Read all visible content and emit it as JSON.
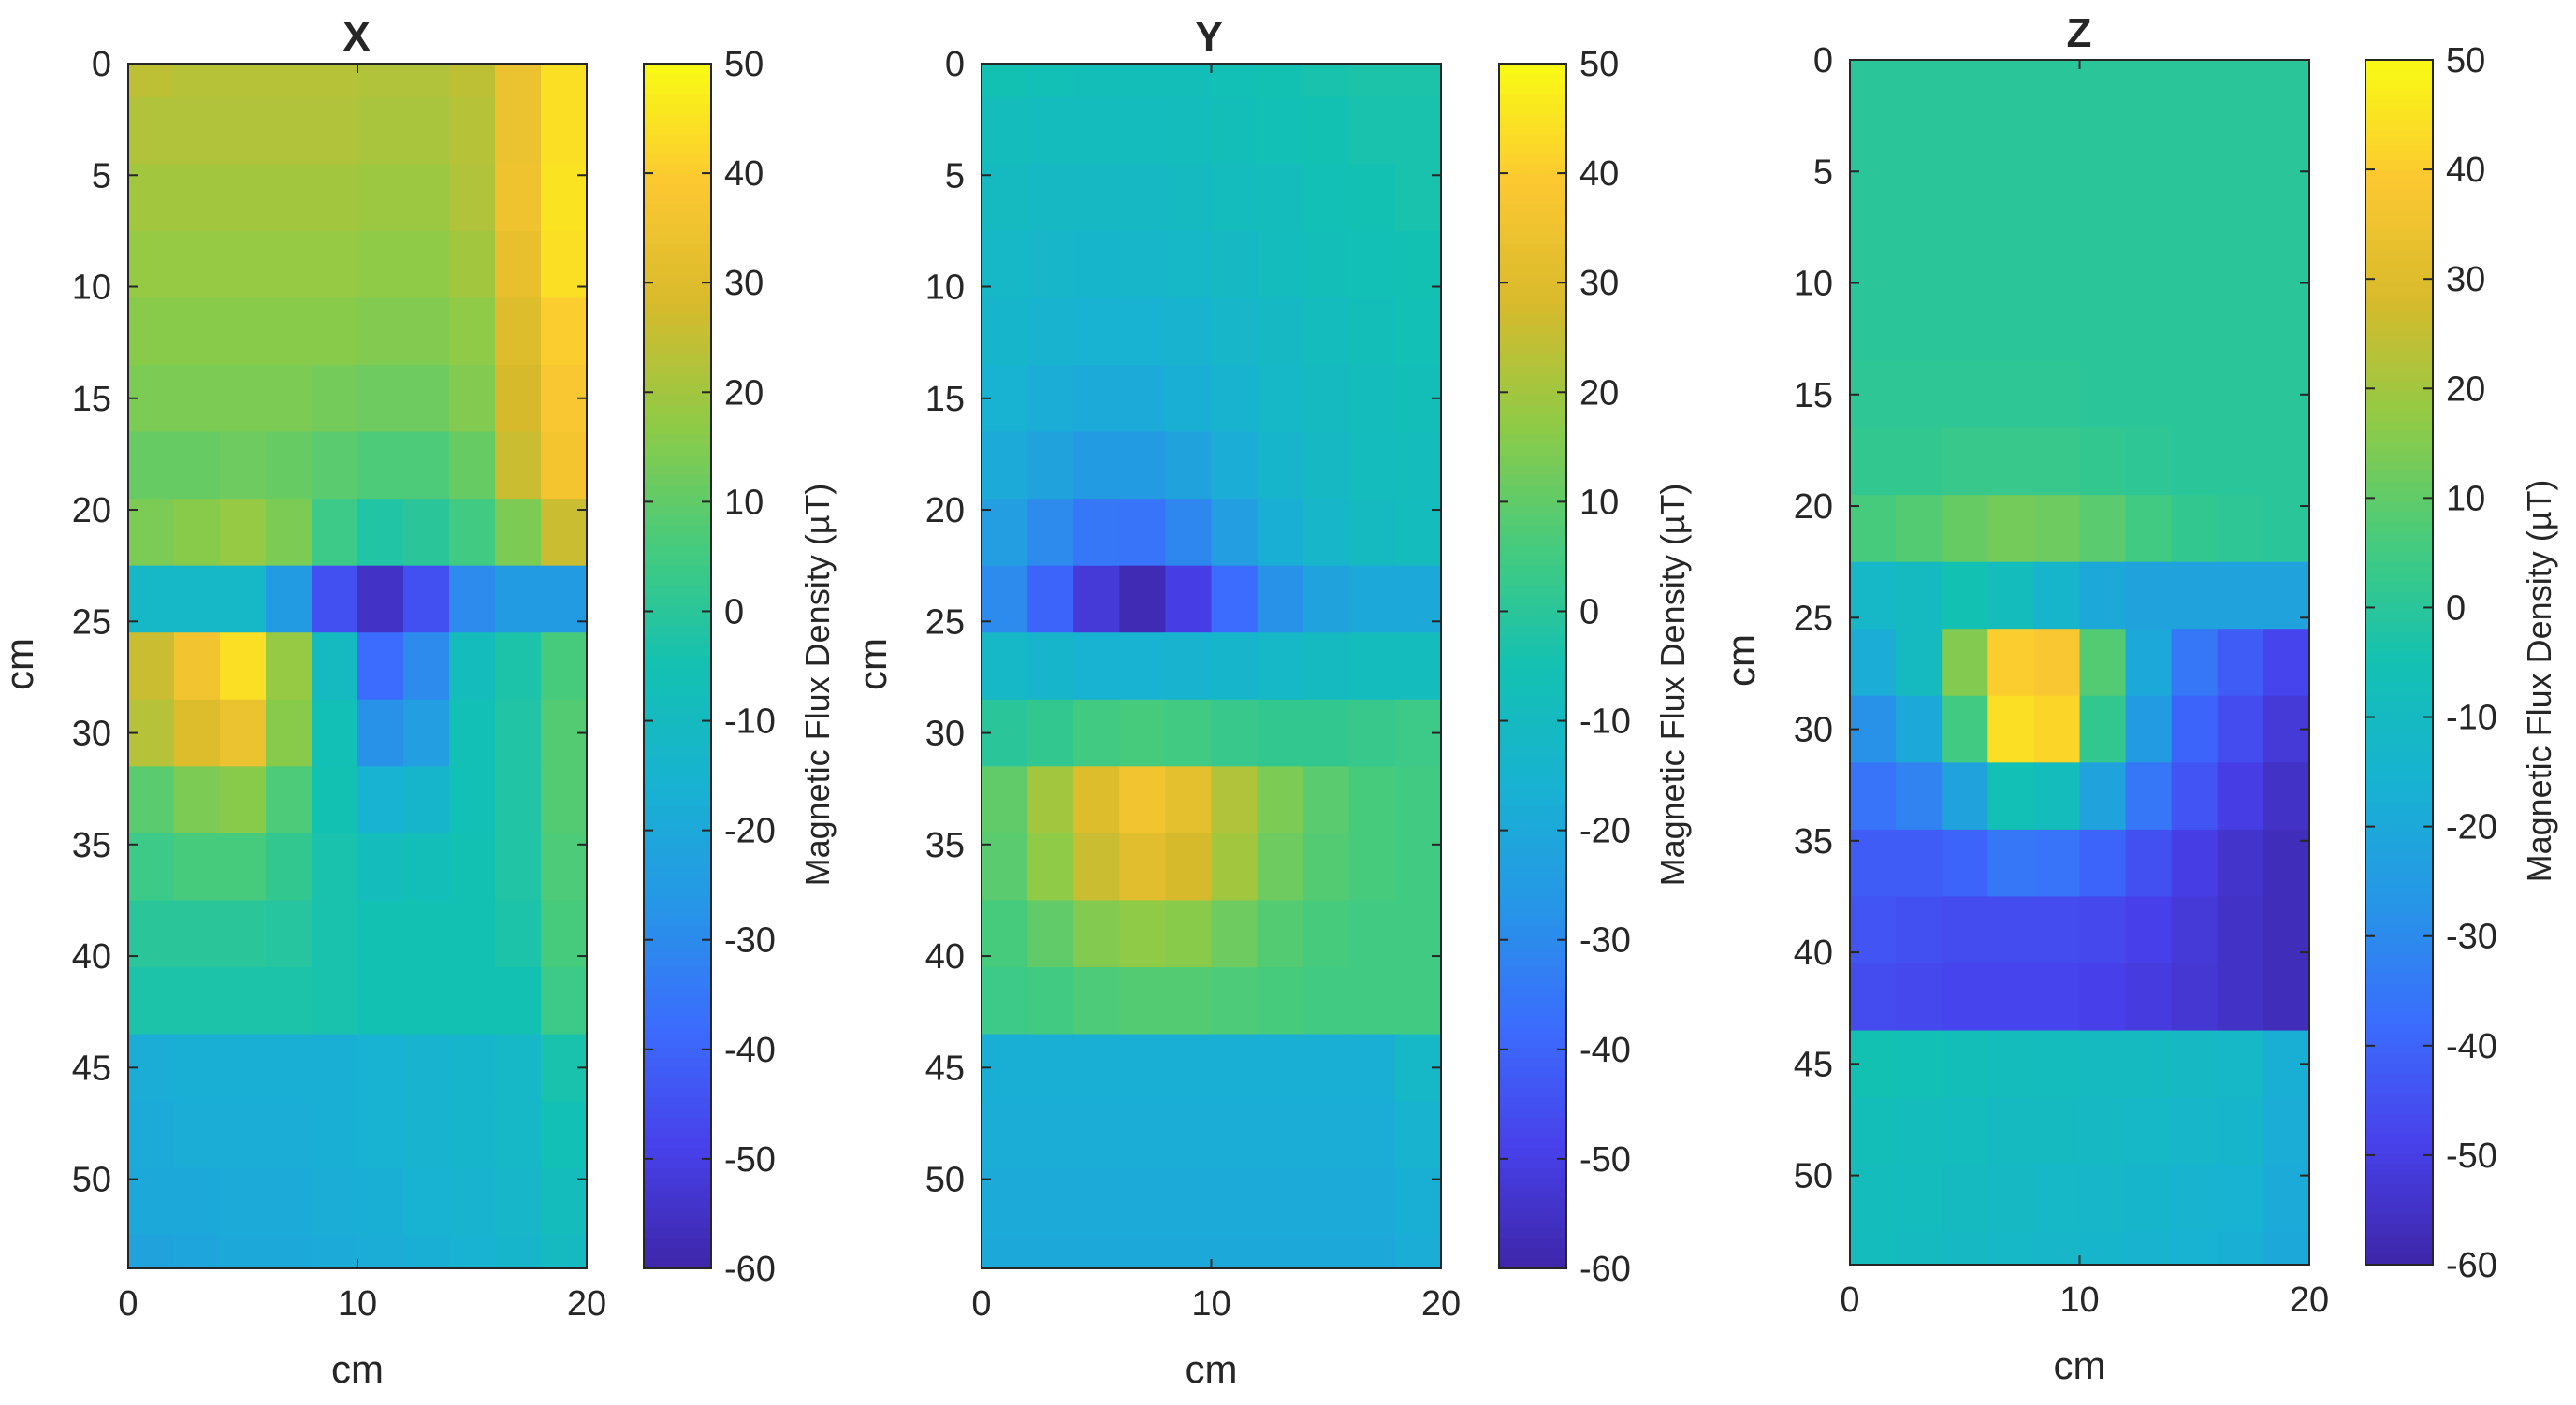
{
  "colors": {
    "axis": "#262626",
    "background": "#ffffff",
    "colormap": "parula"
  },
  "chart_data": [
    {
      "type": "heatmap",
      "title": "X",
      "xlabel": "cm",
      "ylabel": "cm",
      "xlim": [
        0,
        20
      ],
      "ylim": [
        0,
        54
      ],
      "y_direction": "reversed",
      "xticks": [
        "0",
        "10",
        "20"
      ],
      "yticks": [
        "0",
        "5",
        "10",
        "15",
        "20",
        "25",
        "30",
        "35",
        "40",
        "45",
        "50"
      ],
      "colorbar": {
        "label": "Magnetic Flux Density (µT)",
        "range": [
          -60,
          50
        ],
        "ticks": [
          "50",
          "40",
          "30",
          "20",
          "10",
          "0",
          "-10",
          "-20",
          "-30",
          "-40",
          "-50",
          "-60"
        ]
      },
      "grid": false,
      "x": [
        1,
        3,
        5,
        7,
        9,
        11,
        13,
        15,
        17,
        19
      ],
      "y": [
        0,
        3,
        6,
        9,
        12,
        15,
        18,
        21,
        24,
        27,
        30,
        33,
        36,
        39,
        42,
        45,
        48,
        51,
        54
      ],
      "z": [
        [
          24,
          23,
          23,
          23,
          23,
          22,
          22,
          24,
          34,
          44
        ],
        [
          22,
          22,
          22,
          22,
          22,
          21,
          21,
          23,
          34,
          44
        ],
        [
          20,
          20,
          20,
          20,
          20,
          19,
          19,
          22,
          35,
          45
        ],
        [
          18,
          18,
          18,
          18,
          18,
          17,
          17,
          20,
          33,
          44
        ],
        [
          16,
          16,
          16,
          16,
          16,
          15,
          15,
          17,
          30,
          40
        ],
        [
          14,
          14,
          14,
          14,
          13,
          12,
          12,
          15,
          28,
          38
        ],
        [
          11,
          11,
          12,
          11,
          9,
          7,
          7,
          11,
          26,
          37
        ],
        [
          14,
          16,
          18,
          14,
          4,
          -2,
          0,
          5,
          14,
          26
        ],
        [
          -12,
          -12,
          -12,
          -25,
          -45,
          -55,
          -45,
          -30,
          -25,
          -25
        ],
        [
          26,
          36,
          44,
          18,
          -10,
          -38,
          -30,
          -8,
          -3,
          6
        ],
        [
          23,
          30,
          34,
          16,
          -6,
          -28,
          -24,
          -6,
          -2,
          8
        ],
        [
          9,
          14,
          16,
          7,
          -5,
          -16,
          -14,
          -6,
          -2,
          8
        ],
        [
          4,
          6,
          6,
          2,
          -4,
          -8,
          -7,
          -5,
          -2,
          7
        ],
        [
          0,
          0,
          0,
          -1,
          -4,
          -5,
          -5,
          -5,
          -3,
          6
        ],
        [
          -3,
          -3,
          -3,
          -3,
          -4,
          -5,
          -5,
          -5,
          -5,
          4
        ],
        [
          -18,
          -17,
          -17,
          -17,
          -17,
          -16,
          -15,
          -14,
          -12,
          -4
        ],
        [
          -19,
          -18,
          -18,
          -18,
          -17,
          -16,
          -15,
          -14,
          -12,
          -6
        ],
        [
          -20,
          -20,
          -19,
          -19,
          -18,
          -17,
          -16,
          -15,
          -13,
          -8
        ],
        [
          -22,
          -21,
          -20,
          -20,
          -19,
          -18,
          -17,
          -16,
          -14,
          -10
        ]
      ]
    },
    {
      "type": "heatmap",
      "title": "Y",
      "xlabel": "cm",
      "ylabel": "cm",
      "xlim": [
        0,
        20
      ],
      "ylim": [
        0,
        54
      ],
      "y_direction": "reversed",
      "xticks": [
        "0",
        "10",
        "20"
      ],
      "yticks": [
        "0",
        "5",
        "10",
        "15",
        "20",
        "25",
        "30",
        "35",
        "40",
        "45",
        "50"
      ],
      "colorbar": {
        "label": "Magnetic Flux Density (µT)",
        "range": [
          -60,
          50
        ],
        "ticks": [
          "50",
          "40",
          "30",
          "20",
          "10",
          "0",
          "-10",
          "-20",
          "-30",
          "-40",
          "-50",
          "-60"
        ]
      },
      "grid": false,
      "x": [
        1,
        3,
        5,
        7,
        9,
        11,
        13,
        15,
        17,
        19
      ],
      "y": [
        0,
        3,
        6,
        9,
        12,
        15,
        18,
        21,
        24,
        27,
        30,
        33,
        36,
        39,
        42,
        45,
        48,
        51,
        54
      ],
      "z": [
        [
          -5,
          -6,
          -7,
          -7,
          -7,
          -6,
          -5,
          -4,
          -3,
          -3
        ],
        [
          -8,
          -9,
          -9,
          -9,
          -8,
          -7,
          -6,
          -5,
          -4,
          -4
        ],
        [
          -10,
          -11,
          -11,
          -11,
          -10,
          -9,
          -8,
          -6,
          -5,
          -4
        ],
        [
          -12,
          -13,
          -14,
          -13,
          -12,
          -11,
          -9,
          -7,
          -6,
          -5
        ],
        [
          -14,
          -15,
          -16,
          -16,
          -15,
          -13,
          -11,
          -9,
          -7,
          -6
        ],
        [
          -16,
          -18,
          -19,
          -19,
          -17,
          -15,
          -12,
          -10,
          -8,
          -7
        ],
        [
          -19,
          -22,
          -25,
          -25,
          -22,
          -18,
          -14,
          -11,
          -9,
          -8
        ],
        [
          -24,
          -30,
          -35,
          -36,
          -31,
          -24,
          -17,
          -13,
          -10,
          -9
        ],
        [
          -30,
          -40,
          -52,
          -58,
          -50,
          -38,
          -28,
          -22,
          -20,
          -20
        ],
        [
          -12,
          -14,
          -16,
          -16,
          -15,
          -14,
          -12,
          -10,
          -9,
          -9
        ],
        [
          0,
          2,
          5,
          6,
          5,
          3,
          2,
          2,
          3,
          4
        ],
        [
          10,
          20,
          30,
          36,
          32,
          22,
          14,
          9,
          6,
          5
        ],
        [
          9,
          17,
          26,
          31,
          28,
          20,
          12,
          8,
          6,
          5
        ],
        [
          6,
          10,
          15,
          17,
          16,
          12,
          8,
          6,
          5,
          5
        ],
        [
          4,
          5,
          7,
          8,
          8,
          7,
          6,
          5,
          5,
          5
        ],
        [
          -17,
          -17,
          -17,
          -17,
          -17,
          -17,
          -17,
          -17,
          -17,
          -12
        ],
        [
          -18,
          -18,
          -18,
          -18,
          -18,
          -18,
          -18,
          -18,
          -18,
          -15
        ],
        [
          -19,
          -19,
          -19,
          -19,
          -19,
          -19,
          -19,
          -19,
          -19,
          -17
        ],
        [
          -20,
          -20,
          -20,
          -20,
          -20,
          -20,
          -20,
          -20,
          -20,
          -18
        ]
      ]
    },
    {
      "type": "heatmap",
      "title": "Z",
      "xlabel": "cm",
      "ylabel": "cm",
      "xlim": [
        0,
        20
      ],
      "ylim": [
        0,
        54
      ],
      "y_direction": "reversed",
      "xticks": [
        "0",
        "10",
        "20"
      ],
      "yticks": [
        "0",
        "5",
        "10",
        "15",
        "20",
        "25",
        "30",
        "35",
        "40",
        "45",
        "50"
      ],
      "colorbar": {
        "label": "Magnetic Flux Density (µT)",
        "range": [
          -60,
          50
        ],
        "ticks": [
          "50",
          "40",
          "30",
          "20",
          "10",
          "0",
          "-10",
          "-20",
          "-30",
          "-40",
          "-50",
          "-60"
        ]
      },
      "grid": false,
      "x": [
        1,
        3,
        5,
        7,
        9,
        11,
        13,
        15,
        17,
        19
      ],
      "y": [
        0,
        3,
        6,
        9,
        12,
        15,
        18,
        21,
        24,
        27,
        30,
        33,
        36,
        39,
        42,
        45,
        48,
        51,
        54
      ],
      "z": [
        [
          0,
          0,
          0,
          0,
          0,
          0,
          0,
          0,
          0,
          0
        ],
        [
          0,
          0,
          0,
          0,
          0,
          0,
          0,
          0,
          0,
          0
        ],
        [
          0,
          0,
          0,
          0,
          0,
          0,
          0,
          0,
          0,
          0
        ],
        [
          0,
          0,
          0,
          0,
          0,
          0,
          0,
          0,
          0,
          0
        ],
        [
          0,
          0,
          0,
          0,
          0,
          0,
          0,
          0,
          0,
          0
        ],
        [
          1,
          1,
          1,
          1,
          1,
          0,
          0,
          0,
          0,
          0
        ],
        [
          2,
          2,
          3,
          3,
          3,
          2,
          1,
          0,
          0,
          0
        ],
        [
          6,
          8,
          11,
          13,
          12,
          9,
          5,
          2,
          1,
          0
        ],
        [
          -12,
          -10,
          -5,
          -8,
          -14,
          -20,
          -22,
          -22,
          -22,
          -22
        ],
        [
          -18,
          -10,
          15,
          40,
          38,
          8,
          -20,
          -35,
          -42,
          -48
        ],
        [
          -28,
          -20,
          5,
          44,
          42,
          2,
          -25,
          -40,
          -46,
          -52
        ],
        [
          -36,
          -32,
          -22,
          -6,
          -8,
          -22,
          -35,
          -44,
          -50,
          -55
        ],
        [
          -42,
          -42,
          -40,
          -35,
          -36,
          -40,
          -45,
          -50,
          -54,
          -57
        ],
        [
          -44,
          -45,
          -46,
          -46,
          -46,
          -47,
          -49,
          -52,
          -55,
          -57
        ],
        [
          -46,
          -47,
          -48,
          -48,
          -48,
          -49,
          -51,
          -53,
          -55,
          -57
        ],
        [
          -5,
          -6,
          -7,
          -8,
          -9,
          -10,
          -10,
          -11,
          -12,
          -17
        ],
        [
          -7,
          -8,
          -9,
          -10,
          -10,
          -11,
          -12,
          -13,
          -14,
          -18
        ],
        [
          -8,
          -9,
          -10,
          -11,
          -12,
          -13,
          -14,
          -15,
          -16,
          -19
        ],
        [
          -9,
          -10,
          -11,
          -12,
          -13,
          -14,
          -15,
          -16,
          -17,
          -20
        ]
      ]
    }
  ]
}
